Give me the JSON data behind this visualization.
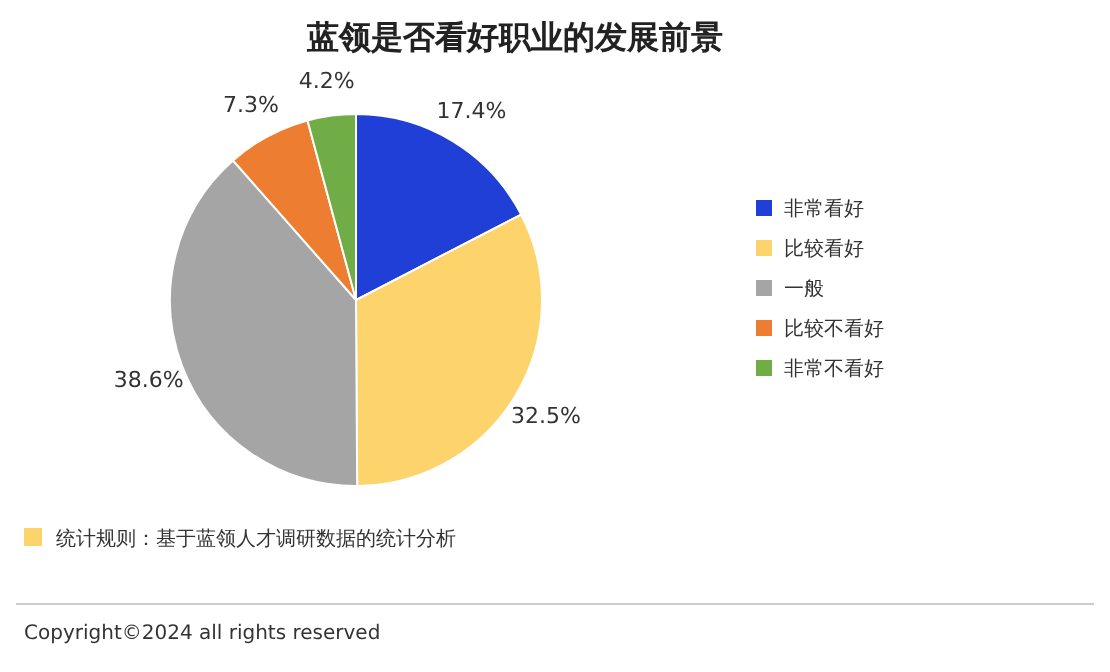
{
  "chart_data": {
    "type": "pie",
    "title": "蓝领是否看好职业的发展前景",
    "categories": [
      "非常看好",
      "比较看好",
      "一般",
      "比较不看好",
      "非常不看好"
    ],
    "values": [
      17.4,
      32.5,
      38.6,
      7.3,
      4.2
    ],
    "value_labels": [
      "17.4%",
      "32.5%",
      "38.6%",
      "7.3%",
      "4.2%"
    ],
    "colors": [
      "#1f3fd6",
      "#fdd36b",
      "#a5a5a5",
      "#ed7d31",
      "#70ad47"
    ],
    "legend": "right",
    "annotations": [
      "统计规则：基于蓝领人才调研数据的统计分析",
      "Copyright©2024 all rights reserved"
    ]
  }
}
